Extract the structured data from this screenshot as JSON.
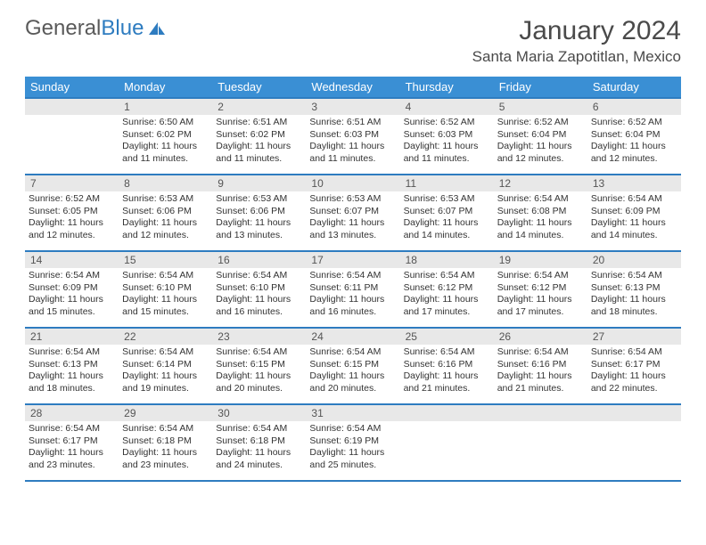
{
  "logo": {
    "text1": "General",
    "text2": "Blue"
  },
  "title": "January 2024",
  "location": "Santa Maria Zapotitlan, Mexico",
  "colors": {
    "header_bg": "#3a8fd4",
    "border": "#2e7cc0",
    "daynum_bg": "#e8e8e8",
    "text": "#333333"
  },
  "days_of_week": [
    "Sunday",
    "Monday",
    "Tuesday",
    "Wednesday",
    "Thursday",
    "Friday",
    "Saturday"
  ],
  "weeks": [
    [
      null,
      {
        "n": "1",
        "sr": "Sunrise: 6:50 AM",
        "ss": "Sunset: 6:02 PM",
        "dl": "Daylight: 11 hours and 11 minutes."
      },
      {
        "n": "2",
        "sr": "Sunrise: 6:51 AM",
        "ss": "Sunset: 6:02 PM",
        "dl": "Daylight: 11 hours and 11 minutes."
      },
      {
        "n": "3",
        "sr": "Sunrise: 6:51 AM",
        "ss": "Sunset: 6:03 PM",
        "dl": "Daylight: 11 hours and 11 minutes."
      },
      {
        "n": "4",
        "sr": "Sunrise: 6:52 AM",
        "ss": "Sunset: 6:03 PM",
        "dl": "Daylight: 11 hours and 11 minutes."
      },
      {
        "n": "5",
        "sr": "Sunrise: 6:52 AM",
        "ss": "Sunset: 6:04 PM",
        "dl": "Daylight: 11 hours and 12 minutes."
      },
      {
        "n": "6",
        "sr": "Sunrise: 6:52 AM",
        "ss": "Sunset: 6:04 PM",
        "dl": "Daylight: 11 hours and 12 minutes."
      }
    ],
    [
      {
        "n": "7",
        "sr": "Sunrise: 6:52 AM",
        "ss": "Sunset: 6:05 PM",
        "dl": "Daylight: 11 hours and 12 minutes."
      },
      {
        "n": "8",
        "sr": "Sunrise: 6:53 AM",
        "ss": "Sunset: 6:06 PM",
        "dl": "Daylight: 11 hours and 12 minutes."
      },
      {
        "n": "9",
        "sr": "Sunrise: 6:53 AM",
        "ss": "Sunset: 6:06 PM",
        "dl": "Daylight: 11 hours and 13 minutes."
      },
      {
        "n": "10",
        "sr": "Sunrise: 6:53 AM",
        "ss": "Sunset: 6:07 PM",
        "dl": "Daylight: 11 hours and 13 minutes."
      },
      {
        "n": "11",
        "sr": "Sunrise: 6:53 AM",
        "ss": "Sunset: 6:07 PM",
        "dl": "Daylight: 11 hours and 14 minutes."
      },
      {
        "n": "12",
        "sr": "Sunrise: 6:54 AM",
        "ss": "Sunset: 6:08 PM",
        "dl": "Daylight: 11 hours and 14 minutes."
      },
      {
        "n": "13",
        "sr": "Sunrise: 6:54 AM",
        "ss": "Sunset: 6:09 PM",
        "dl": "Daylight: 11 hours and 14 minutes."
      }
    ],
    [
      {
        "n": "14",
        "sr": "Sunrise: 6:54 AM",
        "ss": "Sunset: 6:09 PM",
        "dl": "Daylight: 11 hours and 15 minutes."
      },
      {
        "n": "15",
        "sr": "Sunrise: 6:54 AM",
        "ss": "Sunset: 6:10 PM",
        "dl": "Daylight: 11 hours and 15 minutes."
      },
      {
        "n": "16",
        "sr": "Sunrise: 6:54 AM",
        "ss": "Sunset: 6:10 PM",
        "dl": "Daylight: 11 hours and 16 minutes."
      },
      {
        "n": "17",
        "sr": "Sunrise: 6:54 AM",
        "ss": "Sunset: 6:11 PM",
        "dl": "Daylight: 11 hours and 16 minutes."
      },
      {
        "n": "18",
        "sr": "Sunrise: 6:54 AM",
        "ss": "Sunset: 6:12 PM",
        "dl": "Daylight: 11 hours and 17 minutes."
      },
      {
        "n": "19",
        "sr": "Sunrise: 6:54 AM",
        "ss": "Sunset: 6:12 PM",
        "dl": "Daylight: 11 hours and 17 minutes."
      },
      {
        "n": "20",
        "sr": "Sunrise: 6:54 AM",
        "ss": "Sunset: 6:13 PM",
        "dl": "Daylight: 11 hours and 18 minutes."
      }
    ],
    [
      {
        "n": "21",
        "sr": "Sunrise: 6:54 AM",
        "ss": "Sunset: 6:13 PM",
        "dl": "Daylight: 11 hours and 18 minutes."
      },
      {
        "n": "22",
        "sr": "Sunrise: 6:54 AM",
        "ss": "Sunset: 6:14 PM",
        "dl": "Daylight: 11 hours and 19 minutes."
      },
      {
        "n": "23",
        "sr": "Sunrise: 6:54 AM",
        "ss": "Sunset: 6:15 PM",
        "dl": "Daylight: 11 hours and 20 minutes."
      },
      {
        "n": "24",
        "sr": "Sunrise: 6:54 AM",
        "ss": "Sunset: 6:15 PM",
        "dl": "Daylight: 11 hours and 20 minutes."
      },
      {
        "n": "25",
        "sr": "Sunrise: 6:54 AM",
        "ss": "Sunset: 6:16 PM",
        "dl": "Daylight: 11 hours and 21 minutes."
      },
      {
        "n": "26",
        "sr": "Sunrise: 6:54 AM",
        "ss": "Sunset: 6:16 PM",
        "dl": "Daylight: 11 hours and 21 minutes."
      },
      {
        "n": "27",
        "sr": "Sunrise: 6:54 AM",
        "ss": "Sunset: 6:17 PM",
        "dl": "Daylight: 11 hours and 22 minutes."
      }
    ],
    [
      {
        "n": "28",
        "sr": "Sunrise: 6:54 AM",
        "ss": "Sunset: 6:17 PM",
        "dl": "Daylight: 11 hours and 23 minutes."
      },
      {
        "n": "29",
        "sr": "Sunrise: 6:54 AM",
        "ss": "Sunset: 6:18 PM",
        "dl": "Daylight: 11 hours and 23 minutes."
      },
      {
        "n": "30",
        "sr": "Sunrise: 6:54 AM",
        "ss": "Sunset: 6:18 PM",
        "dl": "Daylight: 11 hours and 24 minutes."
      },
      {
        "n": "31",
        "sr": "Sunrise: 6:54 AM",
        "ss": "Sunset: 6:19 PM",
        "dl": "Daylight: 11 hours and 25 minutes."
      },
      null,
      null,
      null
    ]
  ]
}
